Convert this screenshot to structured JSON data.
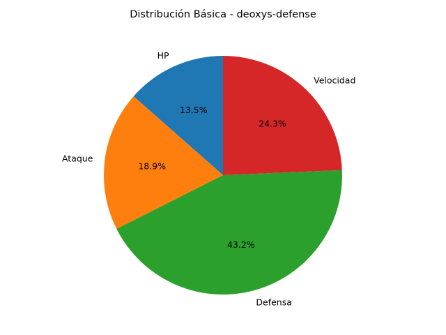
{
  "chart_data": {
    "type": "pie",
    "title": "Distribución Básica - deoxys-defense",
    "start_angle_deg": 90,
    "direction": "counterclockwise",
    "slices": [
      {
        "label": "HP",
        "value": 13.5,
        "pct_label": "13.5%",
        "color": "#1f77b4"
      },
      {
        "label": "Ataque",
        "value": 18.9,
        "pct_label": "18.9%",
        "color": "#ff7f0e"
      },
      {
        "label": "Defensa",
        "value": 43.2,
        "pct_label": "43.2%",
        "color": "#2ca02c"
      },
      {
        "label": "Velocidad",
        "value": 24.3,
        "pct_label": "24.3%",
        "color": "#d62728"
      }
    ]
  }
}
